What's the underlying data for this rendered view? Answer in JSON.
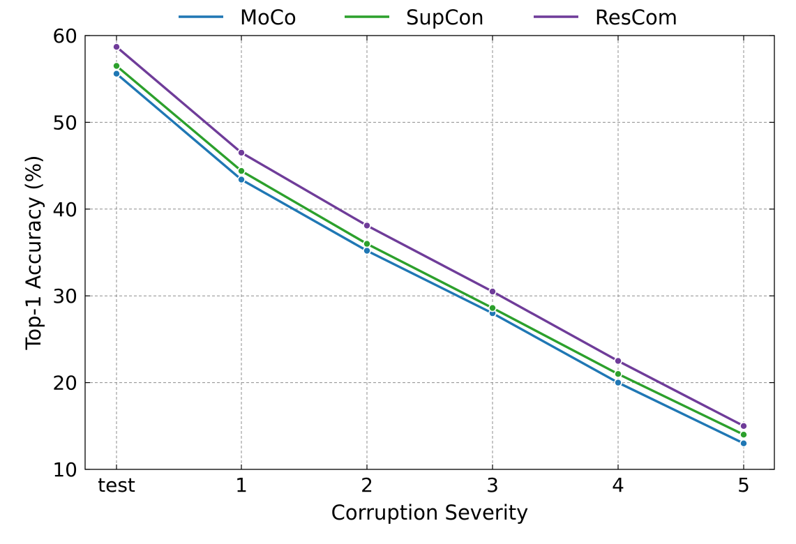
{
  "chart_data": {
    "type": "line",
    "title": "",
    "xlabel": "Corruption Severity",
    "ylabel": "Top-1 Accuracy (%)",
    "categories": [
      "test",
      "1",
      "2",
      "3",
      "4",
      "5"
    ],
    "ylim": [
      10,
      60
    ],
    "yticks": [
      "10",
      "20",
      "30",
      "40",
      "50",
      "60"
    ],
    "grid": true,
    "legend_position": "top-center",
    "series": [
      {
        "name": "MoCo",
        "color": "#1f77b4",
        "values": [
          55.6,
          43.4,
          35.2,
          28.0,
          20.0,
          13.0
        ]
      },
      {
        "name": "SupCon",
        "color": "#2ca02c",
        "values": [
          56.5,
          44.4,
          36.0,
          28.6,
          21.0,
          14.0
        ]
      },
      {
        "name": "ResCom",
        "color": "#6f3c99",
        "values": [
          58.7,
          46.5,
          38.1,
          30.5,
          22.5,
          15.0
        ]
      }
    ]
  }
}
